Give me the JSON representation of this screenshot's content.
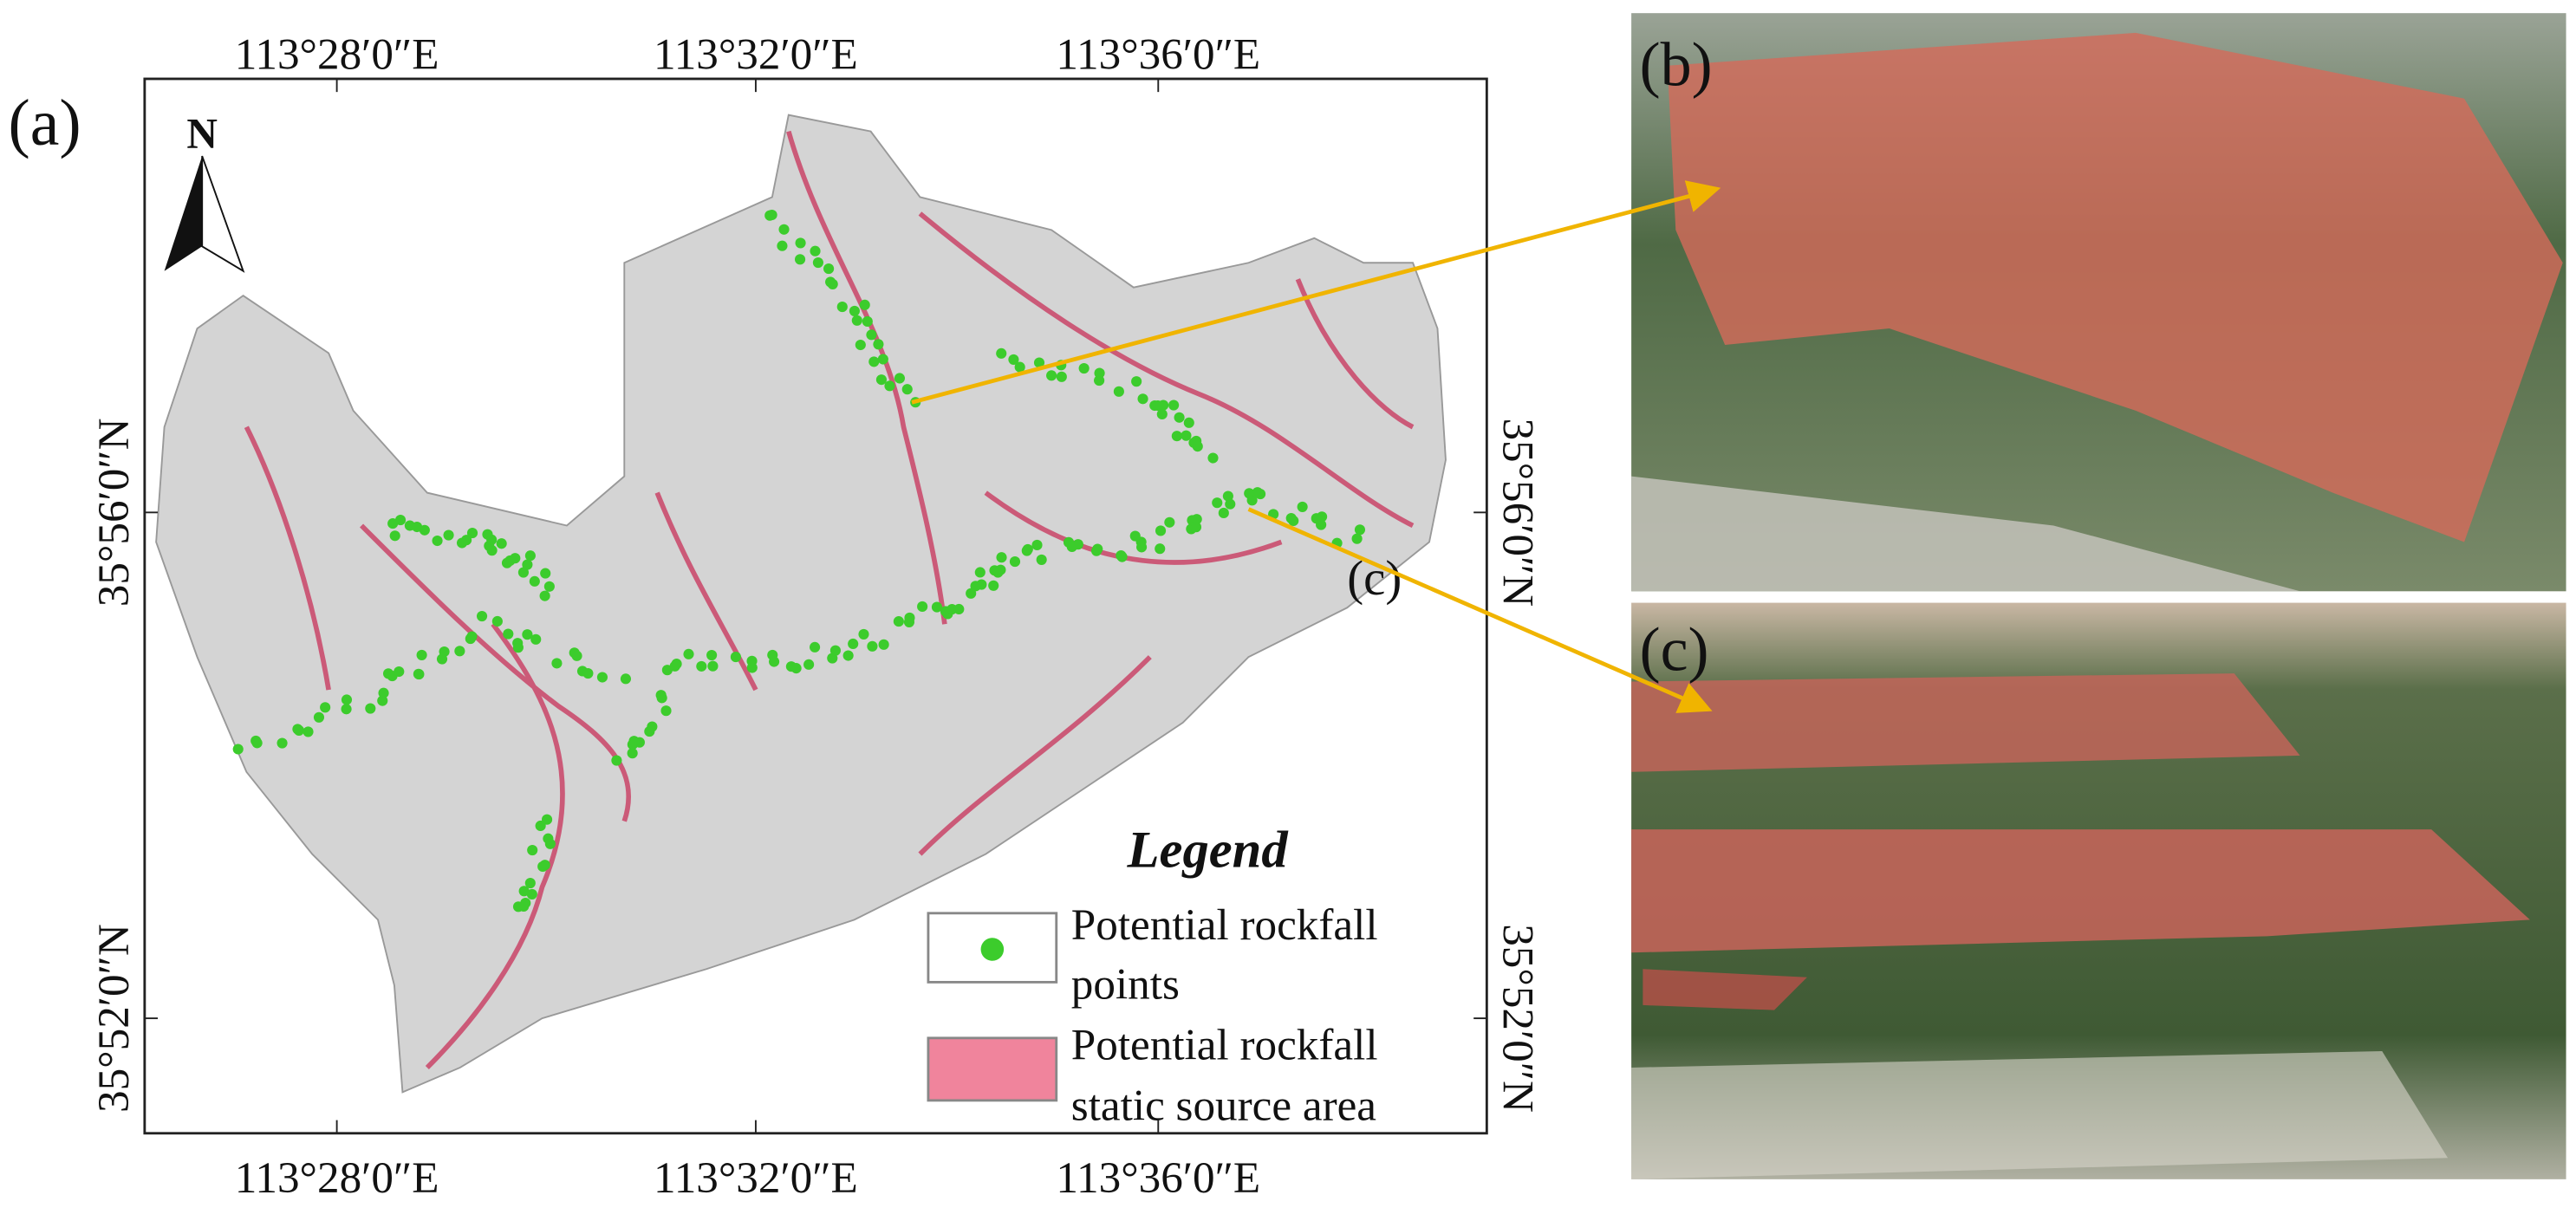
{
  "panel_labels": [
    "(a)",
    "(b)",
    "(c)"
  ],
  "map": {
    "north": "N",
    "top_labels": [
      "113°28′0″E",
      "113°32′0″E",
      "113°36′0″E"
    ],
    "bottom_labels": [
      "113°28′0″E",
      "113°32′0″E",
      "113°36′0″E"
    ],
    "left_labels": [
      "35°56′0″N",
      "35°52′0″N"
    ],
    "right_labels": [
      "35°56′0″N",
      "35°52′0″N"
    ],
    "callout": "(c)",
    "legend": {
      "title": "Legend",
      "items": [
        {
          "lines": [
            "Potential rockfall",
            "points"
          ]
        },
        {
          "lines": [
            "Potential rockfall",
            "static source area"
          ]
        }
      ]
    }
  }
}
